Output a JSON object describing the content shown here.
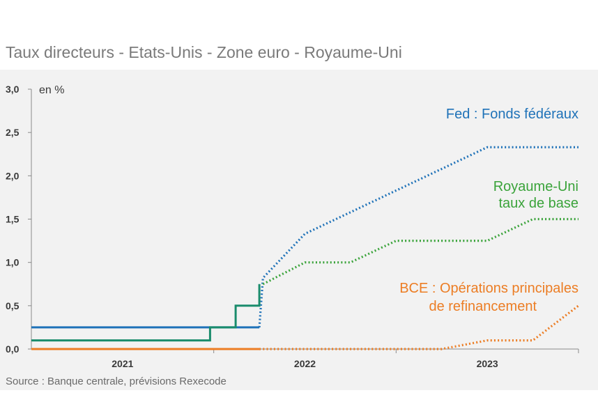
{
  "title": "Taux directeurs - Etats-Unis - Zone euro - Royaume-Uni",
  "source": "Source : Banque centrale, prévisions Rexecode",
  "chart_data": {
    "type": "line",
    "title": "Taux directeurs - Etats-Unis - Zone euro - Royaume-Uni",
    "ylabel": "en %",
    "ylim": [
      0,
      3.0
    ],
    "yticks": [
      "0,0",
      "0,5",
      "1,0",
      "1,5",
      "2,0",
      "2,5",
      "3,0"
    ],
    "yticks_values": [
      0,
      0.5,
      1.0,
      1.5,
      2.0,
      2.5,
      3.0
    ],
    "xlim": [
      2020.5,
      2023.5
    ],
    "xticks": [
      "2021",
      "2022",
      "2023"
    ],
    "xticks_values": [
      2021,
      2022,
      2023
    ],
    "grid": false,
    "colors": {
      "fed": "#1f72b8",
      "uk_hist": "#1a8c6c",
      "uk_fc": "#3aa33a",
      "ecb": "#ec7d24"
    },
    "series": [
      {
        "name": "Fed : Fonds fédéraux",
        "key": "fed",
        "historical": {
          "x": [
            2020.5,
            2021.75
          ],
          "y": [
            0.25,
            0.25
          ],
          "step": true
        },
        "forecast": {
          "x": [
            2021.75,
            2021.77,
            2022.0,
            2022.25,
            2022.5,
            2022.75,
            2023.0,
            2023.5
          ],
          "y": [
            0.25,
            0.82,
            1.33,
            1.58,
            1.83,
            2.08,
            2.33,
            2.33
          ]
        }
      },
      {
        "name": "Royaume-Uni taux de base",
        "label_lines": [
          "Royaume-Uni",
          "taux de base"
        ],
        "key": "uk",
        "historical": {
          "x": [
            2020.5,
            2021.48,
            2021.62,
            2021.75,
            2021.75
          ],
          "y": [
            0.1,
            0.25,
            0.5,
            0.5,
            0.75
          ],
          "step": true
        },
        "forecast": {
          "x": [
            2021.77,
            2022.0,
            2022.25,
            2022.5,
            2023.0,
            2023.25,
            2023.5
          ],
          "y": [
            0.75,
            1.0,
            1.0,
            1.25,
            1.25,
            1.5,
            1.5
          ]
        }
      },
      {
        "name": "BCE : Opérations principales de refinancement",
        "label_lines": [
          "BCE : Opérations principales",
          "de refinancement"
        ],
        "key": "ecb",
        "historical": {
          "x": [
            2020.5,
            2021.75
          ],
          "y": [
            0.0,
            0.0
          ],
          "step": true
        },
        "forecast": {
          "x": [
            2021.75,
            2022.75,
            2023.0,
            2023.25,
            2023.5
          ],
          "y": [
            0.0,
            0.0,
            0.1,
            0.1,
            0.5
          ]
        }
      }
    ]
  }
}
